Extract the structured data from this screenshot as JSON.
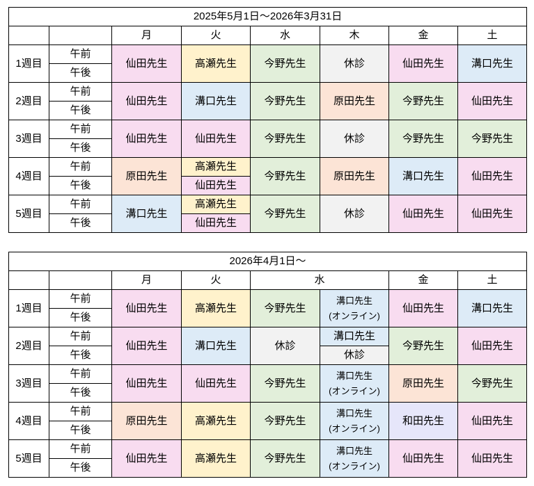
{
  "slots": [
    "午前",
    "午後"
  ],
  "tables": [
    {
      "title": "2025年5月1日～2026年3月31日",
      "headers": [
        {
          "label": "月",
          "span": 1
        },
        {
          "label": "火",
          "span": 1
        },
        {
          "label": "水",
          "span": 1
        },
        {
          "label": "木",
          "span": 1
        },
        {
          "label": "金",
          "span": 1
        },
        {
          "label": "土",
          "span": 1
        }
      ],
      "weeks": [
        {
          "label": "1週目",
          "cells": [
            {
              "text": "仙田先生",
              "color": "pink"
            },
            {
              "text": "高瀬先生",
              "color": "yellow"
            },
            {
              "text": "今野先生",
              "color": "green"
            },
            {
              "text": "休診",
              "color": "grey"
            },
            {
              "text": "仙田先生",
              "color": "pink"
            },
            {
              "text": "溝口先生",
              "color": "blue"
            }
          ]
        },
        {
          "label": "2週目",
          "cells": [
            {
              "text": "仙田先生",
              "color": "pink"
            },
            {
              "text": "溝口先生",
              "color": "blue"
            },
            {
              "text": "今野先生",
              "color": "green"
            },
            {
              "text": "原田先生",
              "color": "orange"
            },
            {
              "text": "今野先生",
              "color": "green"
            },
            {
              "text": "仙田先生",
              "color": "pink"
            }
          ]
        },
        {
          "label": "3週目",
          "cells": [
            {
              "text": "仙田先生",
              "color": "pink"
            },
            {
              "text": "仙田先生",
              "color": "pink"
            },
            {
              "text": "今野先生",
              "color": "green"
            },
            {
              "text": "休診",
              "color": "grey"
            },
            {
              "text": "今野先生",
              "color": "green"
            },
            {
              "text": "今野先生",
              "color": "green"
            }
          ]
        },
        {
          "label": "4週目",
          "cells": [
            {
              "text": "原田先生",
              "color": "orange"
            },
            {
              "split": [
                {
                  "text": "高瀬先生",
                  "color": "yellow"
                },
                {
                  "text": "仙田先生",
                  "color": "pink"
                }
              ]
            },
            {
              "text": "今野先生",
              "color": "green"
            },
            {
              "text": "原田先生",
              "color": "orange"
            },
            {
              "text": "溝口先生",
              "color": "blue"
            },
            {
              "text": "仙田先生",
              "color": "pink"
            }
          ]
        },
        {
          "label": "5週目",
          "cells": [
            {
              "text": "溝口先生",
              "color": "blue"
            },
            {
              "split": [
                {
                  "text": "高瀬先生",
                  "color": "yellow"
                },
                {
                  "text": "仙田先生",
                  "color": "pink"
                }
              ]
            },
            {
              "text": "今野先生",
              "color": "green"
            },
            {
              "text": "休診",
              "color": "grey"
            },
            {
              "text": "仙田先生",
              "color": "pink"
            },
            {
              "text": "仙田先生",
              "color": "pink"
            }
          ]
        }
      ]
    },
    {
      "title": "2026年4月1日～",
      "headers": [
        {
          "label": "月",
          "span": 1
        },
        {
          "label": "火",
          "span": 1
        },
        {
          "label": "水",
          "span": 2
        },
        {
          "label": "金",
          "span": 1
        },
        {
          "label": "土",
          "span": 1
        }
      ],
      "weeks": [
        {
          "label": "1週目",
          "cells": [
            {
              "text": "仙田先生",
              "color": "pink"
            },
            {
              "text": "高瀬先生",
              "color": "yellow"
            },
            {
              "text": "今野先生",
              "color": "green"
            },
            {
              "text": "溝口先生\n(オンライン)",
              "color": "blue",
              "small": true
            },
            {
              "text": "仙田先生",
              "color": "pink"
            },
            {
              "text": "溝口先生",
              "color": "blue"
            }
          ]
        },
        {
          "label": "2週目",
          "cells": [
            {
              "text": "仙田先生",
              "color": "pink"
            },
            {
              "text": "溝口先生",
              "color": "blue"
            },
            {
              "text": "休診",
              "color": "grey"
            },
            {
              "split": [
                {
                  "text": "溝口先生",
                  "color": "blue"
                },
                {
                  "text": "休診",
                  "color": "grey"
                }
              ]
            },
            {
              "text": "今野先生",
              "color": "green"
            },
            {
              "text": "仙田先生",
              "color": "pink"
            }
          ]
        },
        {
          "label": "3週目",
          "cells": [
            {
              "text": "仙田先生",
              "color": "pink"
            },
            {
              "text": "仙田先生",
              "color": "pink"
            },
            {
              "text": "今野先生",
              "color": "green"
            },
            {
              "text": "溝口先生\n(オンライン)",
              "color": "blue",
              "small": true
            },
            {
              "text": "原田先生",
              "color": "orange"
            },
            {
              "text": "今野先生",
              "color": "green"
            }
          ]
        },
        {
          "label": "4週目",
          "cells": [
            {
              "text": "原田先生",
              "color": "orange"
            },
            {
              "text": "高瀬先生",
              "color": "yellow"
            },
            {
              "text": "今野先生",
              "color": "green"
            },
            {
              "text": "溝口先生\n(オンライン)",
              "color": "blue",
              "small": true
            },
            {
              "text": "和田先生",
              "color": "lavender"
            },
            {
              "text": "仙田先生",
              "color": "pink"
            }
          ]
        },
        {
          "label": "5週目",
          "cells": [
            {
              "text": "仙田先生",
              "color": "pink"
            },
            {
              "text": "高瀬先生",
              "color": "yellow"
            },
            {
              "text": "今野先生",
              "color": "green"
            },
            {
              "text": "溝口先生\n(オンライン)",
              "color": "blue",
              "small": true
            },
            {
              "text": "仙田先生",
              "color": "pink"
            },
            {
              "text": "仙田先生",
              "color": "pink"
            }
          ]
        }
      ]
    }
  ],
  "colors": {
    "pink": "#f8dcf0",
    "yellow": "#fff2cc",
    "green": "#e2efda",
    "grey": "#f2f2f2",
    "blue": "#ddebf7",
    "orange": "#fce4d6",
    "lavender": "#e6e6fa"
  }
}
